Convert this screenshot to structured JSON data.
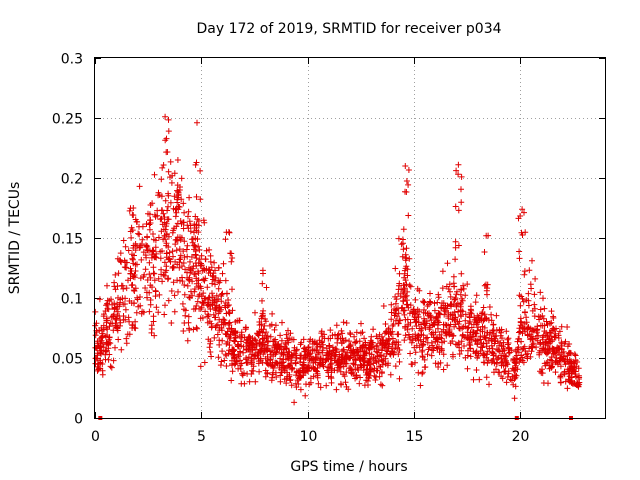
{
  "chart_data": {
    "type": "scatter",
    "title": "Day 172 of 2019, SRMTID for receiver p034",
    "xlabel": "GPS time / hours",
    "ylabel": "SRMTID / TECUs",
    "xlim": [
      0,
      24
    ],
    "ylim": [
      0,
      0.3
    ],
    "xticks": [
      0,
      5,
      10,
      15,
      20
    ],
    "xtick_labels": [
      "0",
      "5",
      "10",
      "15",
      "20"
    ],
    "yticks": [
      0,
      0.05,
      0.1,
      0.15,
      0.2,
      0.25,
      0.3
    ],
    "ytick_labels": [
      "0",
      "0.05",
      "0.1",
      "0.15",
      "0.2",
      "0.25",
      "0.3"
    ],
    "grid": true,
    "marker": "+",
    "color": "#e00000",
    "baseline_markers_x": [
      0.25,
      19.85,
      22.4
    ],
    "series": [
      {
        "name": "SRMTID",
        "trend": [
          [
            0.0,
            0.06
          ],
          [
            0.5,
            0.07
          ],
          [
            1.0,
            0.09
          ],
          [
            1.5,
            0.105
          ],
          [
            2.0,
            0.12
          ],
          [
            2.5,
            0.13
          ],
          [
            3.0,
            0.14
          ],
          [
            3.5,
            0.15
          ],
          [
            4.0,
            0.14
          ],
          [
            4.5,
            0.13
          ],
          [
            5.0,
            0.115
          ],
          [
            5.5,
            0.1
          ],
          [
            6.0,
            0.08
          ],
          [
            6.5,
            0.06
          ],
          [
            7.0,
            0.055
          ],
          [
            7.5,
            0.055
          ],
          [
            8.0,
            0.06
          ],
          [
            8.5,
            0.055
          ],
          [
            9.0,
            0.05
          ],
          [
            9.5,
            0.045
          ],
          [
            10.0,
            0.045
          ],
          [
            10.5,
            0.05
          ],
          [
            11.0,
            0.05
          ],
          [
            11.5,
            0.05
          ],
          [
            12.0,
            0.05
          ],
          [
            12.5,
            0.05
          ],
          [
            13.0,
            0.05
          ],
          [
            13.5,
            0.055
          ],
          [
            14.0,
            0.07
          ],
          [
            14.5,
            0.11
          ],
          [
            15.0,
            0.08
          ],
          [
            15.5,
            0.07
          ],
          [
            16.0,
            0.075
          ],
          [
            16.5,
            0.08
          ],
          [
            17.0,
            0.09
          ],
          [
            17.5,
            0.075
          ],
          [
            18.0,
            0.07
          ],
          [
            18.5,
            0.065
          ],
          [
            19.0,
            0.055
          ],
          [
            19.5,
            0.045
          ],
          [
            19.8,
            0.04
          ],
          [
            20.0,
            0.07
          ],
          [
            20.5,
            0.08
          ],
          [
            21.0,
            0.065
          ],
          [
            21.5,
            0.06
          ],
          [
            22.0,
            0.05
          ],
          [
            22.5,
            0.04
          ],
          [
            22.8,
            0.03
          ]
        ],
        "peaks": [
          {
            "x": 3.3,
            "y": 0.251
          },
          {
            "x": 4.8,
            "y": 0.246
          },
          {
            "x": 3.9,
            "y": 0.215
          },
          {
            "x": 14.6,
            "y": 0.21
          },
          {
            "x": 17.1,
            "y": 0.211
          },
          {
            "x": 20.1,
            "y": 0.174
          },
          {
            "x": 1.8,
            "y": 0.175
          },
          {
            "x": 6.3,
            "y": 0.155
          },
          {
            "x": 18.5,
            "y": 0.152
          },
          {
            "x": 7.9,
            "y": 0.123
          }
        ]
      }
    ]
  }
}
